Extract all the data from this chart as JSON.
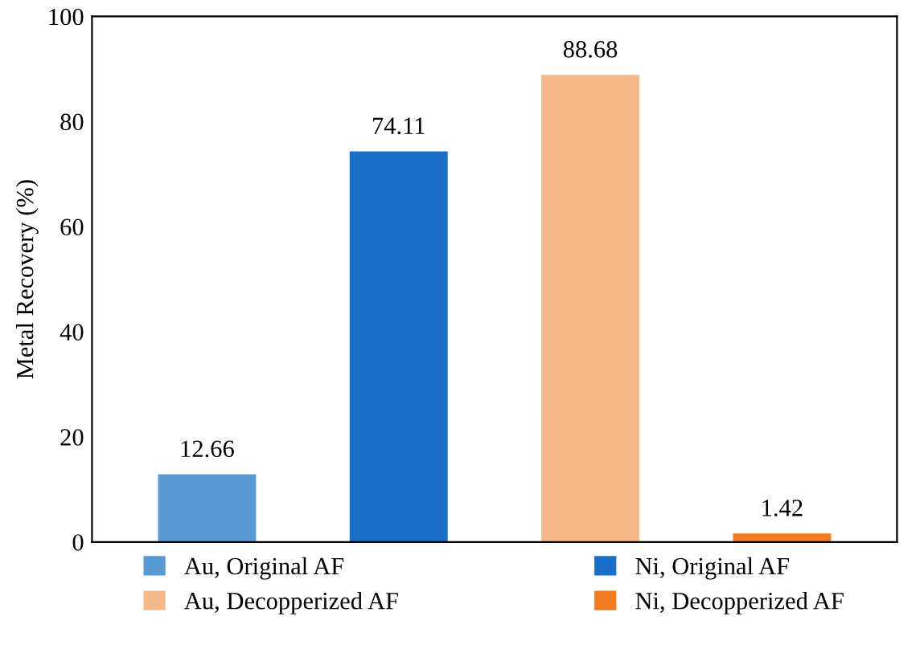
{
  "chart_data": {
    "type": "bar",
    "ylabel": "Metal Recovery (%)",
    "categories": [
      null,
      null,
      null,
      null
    ],
    "series": [
      {
        "name": "Au, Original AF",
        "color": "#5b9bd5",
        "values": [
          12.66,
          null,
          null,
          null
        ]
      },
      {
        "name": "Ni, Original AF",
        "color": "#1a70c8",
        "values": [
          null,
          74.11,
          null,
          null
        ]
      },
      {
        "name": "Au, Decopperized AF",
        "color": "#f8b98a",
        "values": [
          null,
          null,
          88.68,
          null
        ]
      },
      {
        "name": "Ni, Decopperized AF",
        "color": "#f47b20",
        "values": [
          null,
          null,
          null,
          1.42
        ]
      }
    ],
    "ylim": [
      0,
      100
    ],
    "yticks": [
      0,
      20,
      40,
      60,
      80,
      100
    ],
    "grid": false,
    "legend": "bottom",
    "data_labels": true
  }
}
